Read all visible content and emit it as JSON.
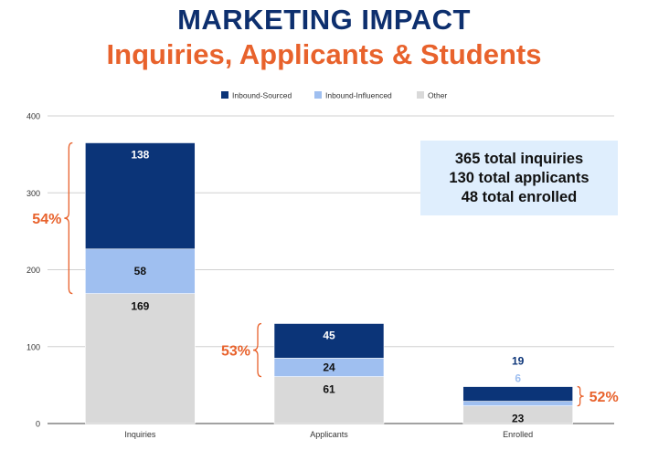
{
  "header": {
    "title": "MARKETING IMPACT",
    "subtitle": "Inquiries, Applicants & Students"
  },
  "summary": {
    "line1": "365 total inquiries",
    "line2": "130 total applicants",
    "line3": "48 total enrolled"
  },
  "colors": {
    "title": "#0d2f6e",
    "accent": "#e8622c",
    "inbound_sourced": "#0b3478",
    "inbound_influenced": "#9fbff0",
    "other": "#d9d9d9",
    "summary_bg": "#dfeefd"
  },
  "chart_data": {
    "type": "bar",
    "stacked": true,
    "categories": [
      "Inquiries",
      "Applicants",
      "Enrolled"
    ],
    "series": [
      {
        "name": "Other",
        "values": [
          169,
          61,
          23
        ],
        "color": "#d9d9d9"
      },
      {
        "name": "Inbound-Influenced",
        "values": [
          58,
          24,
          6
        ],
        "color": "#9fbff0"
      },
      {
        "name": "Inbound-Sourced",
        "values": [
          138,
          45,
          19
        ],
        "color": "#0b3478"
      }
    ],
    "legend_order": [
      "Inbound-Sourced",
      "Inbound-Influenced",
      "Other"
    ],
    "legend_position": "top",
    "ylim": [
      0,
      400
    ],
    "yticks": [
      0,
      100,
      200,
      300,
      400
    ],
    "grid": true,
    "bracket_labels": [
      "54%",
      "53%",
      "52%"
    ],
    "xlabel": "",
    "ylabel": ""
  }
}
